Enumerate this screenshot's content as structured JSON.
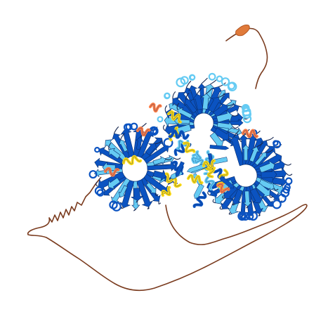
{
  "scene": {
    "colors": {
      "background": "#ffffff",
      "very_high": "#0b53c1",
      "confident": "#65cbf3",
      "low": "#ffdb13",
      "very_low": "#ff7d45",
      "coil": "#7a3b1e",
      "dark_coil": "#1a2a52"
    }
  }
}
